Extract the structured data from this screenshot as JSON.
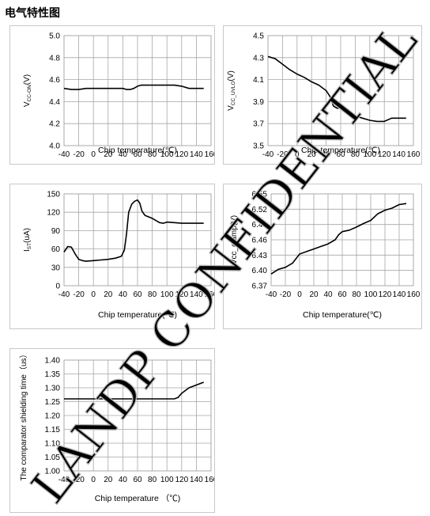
{
  "page": {
    "heading": "电气特性图"
  },
  "chart_data": [
    {
      "type": "line",
      "ylabel_main": "V",
      "ylabel_sub": "CC-ON",
      "ylabel_tail": "(V)",
      "xlabel": "Chip temperature(℃)",
      "xlim": [
        -40,
        160
      ],
      "xticks": [
        -40,
        -20,
        0,
        20,
        40,
        60,
        80,
        100,
        120,
        140,
        160
      ],
      "ylim": [
        4.0,
        5.0
      ],
      "yticks": [
        "4.0",
        "4.2",
        "4.4",
        "4.6",
        "4.8",
        "5.0"
      ],
      "x": [
        -40,
        -30,
        -20,
        -10,
        0,
        10,
        20,
        30,
        40,
        45,
        50,
        55,
        60,
        65,
        70,
        80,
        90,
        100,
        110,
        120,
        130,
        140,
        150
      ],
      "y": [
        4.52,
        4.51,
        4.51,
        4.52,
        4.52,
        4.52,
        4.52,
        4.52,
        4.52,
        4.51,
        4.51,
        4.52,
        4.54,
        4.55,
        4.55,
        4.55,
        4.55,
        4.55,
        4.55,
        4.54,
        4.52,
        4.52,
        4.52
      ]
    },
    {
      "type": "line",
      "ylabel_main": "V",
      "ylabel_sub": "CC_UVLO",
      "ylabel_tail": "(V)",
      "xlabel": "Chip temperature(℃)",
      "xlim": [
        -40,
        160
      ],
      "xticks": [
        -40,
        -20,
        0,
        20,
        40,
        60,
        80,
        100,
        120,
        140,
        160
      ],
      "ylim": [
        3.5,
        4.5
      ],
      "yticks": [
        "3.5",
        "3.7",
        "3.9",
        "4.1",
        "4.3",
        "4.5"
      ],
      "x": [
        -40,
        -30,
        -20,
        -10,
        0,
        10,
        20,
        30,
        40,
        45,
        50,
        55,
        60,
        70,
        80,
        90,
        100,
        110,
        120,
        130,
        140,
        150
      ],
      "y": [
        4.31,
        4.29,
        4.24,
        4.19,
        4.15,
        4.12,
        4.08,
        4.05,
        4.0,
        3.95,
        3.86,
        3.84,
        3.84,
        3.8,
        3.77,
        3.75,
        3.73,
        3.72,
        3.72,
        3.75,
        3.75,
        3.75
      ]
    },
    {
      "type": "line",
      "ylabel_main": "I",
      "ylabel_sub": "ST",
      "ylabel_tail": "(uA)",
      "xlabel": "Chip temperature(℃)",
      "xlim": [
        -40,
        160
      ],
      "xticks": [
        -40,
        -20,
        0,
        20,
        40,
        60,
        80,
        100,
        120,
        140,
        160
      ],
      "ylim": [
        0,
        150
      ],
      "yticks": [
        "0",
        "30",
        "60",
        "90",
        "120",
        "150"
      ],
      "x": [
        -40,
        -35,
        -30,
        -25,
        -20,
        -15,
        -10,
        0,
        10,
        20,
        30,
        38,
        42,
        45,
        48,
        52,
        56,
        60,
        63,
        66,
        70,
        80,
        90,
        95,
        100,
        110,
        120,
        130,
        140,
        150
      ],
      "y": [
        55,
        64,
        63,
        52,
        43,
        41,
        40,
        41,
        42,
        43,
        45,
        48,
        58,
        85,
        120,
        133,
        138,
        140,
        135,
        122,
        115,
        110,
        103,
        102,
        104,
        103,
        102,
        102,
        102,
        102
      ]
    },
    {
      "type": "line",
      "ylabel_main": "Vcc_clamp(V)",
      "ylabel_sub": "",
      "ylabel_tail": "",
      "xlabel": "Chip temperature(℃)",
      "xlim": [
        -40,
        160
      ],
      "xticks": [
        -40,
        -20,
        0,
        20,
        40,
        60,
        80,
        100,
        120,
        140,
        160
      ],
      "ylim": [
        6.37,
        6.55
      ],
      "yticks": [
        "6.37",
        "6.40",
        "6.43",
        "6.46",
        "6.49",
        "6.52",
        "6.55"
      ],
      "x": [
        -40,
        -30,
        -20,
        -10,
        0,
        10,
        20,
        30,
        40,
        50,
        55,
        60,
        70,
        80,
        90,
        100,
        110,
        120,
        130,
        140,
        150
      ],
      "y": [
        6.393,
        6.402,
        6.406,
        6.414,
        6.432,
        6.437,
        6.442,
        6.447,
        6.452,
        6.46,
        6.47,
        6.476,
        6.479,
        6.485,
        6.492,
        6.498,
        6.511,
        6.518,
        6.522,
        6.529,
        6.531
      ]
    },
    {
      "type": "line",
      "ylabel_main": "The comparator shielding time（us）",
      "ylabel_sub": "",
      "ylabel_tail": "",
      "xlabel": "Chip temperature （℃)",
      "xlim": [
        -40,
        160
      ],
      "xticks": [
        -40,
        -20,
        0,
        20,
        40,
        60,
        80,
        100,
        120,
        140,
        160
      ],
      "ylim": [
        1.0,
        1.4
      ],
      "yticks": [
        "1.00",
        "1.05",
        "1.10",
        "1.15",
        "1.20",
        "1.25",
        "1.30",
        "1.35",
        "1.40"
      ],
      "x": [
        -40,
        0,
        50,
        100,
        110,
        115,
        120,
        130,
        140,
        150
      ],
      "y": [
        1.26,
        1.26,
        1.26,
        1.26,
        1.26,
        1.265,
        1.28,
        1.3,
        1.31,
        1.32
      ]
    }
  ],
  "watermark": {
    "text": "LANDP CONFIDENTIAL",
    "color": "#b0b0b0"
  },
  "colors": {
    "grid": "#a6a6a6",
    "line": "#000000",
    "border": "#c8c8c8"
  }
}
